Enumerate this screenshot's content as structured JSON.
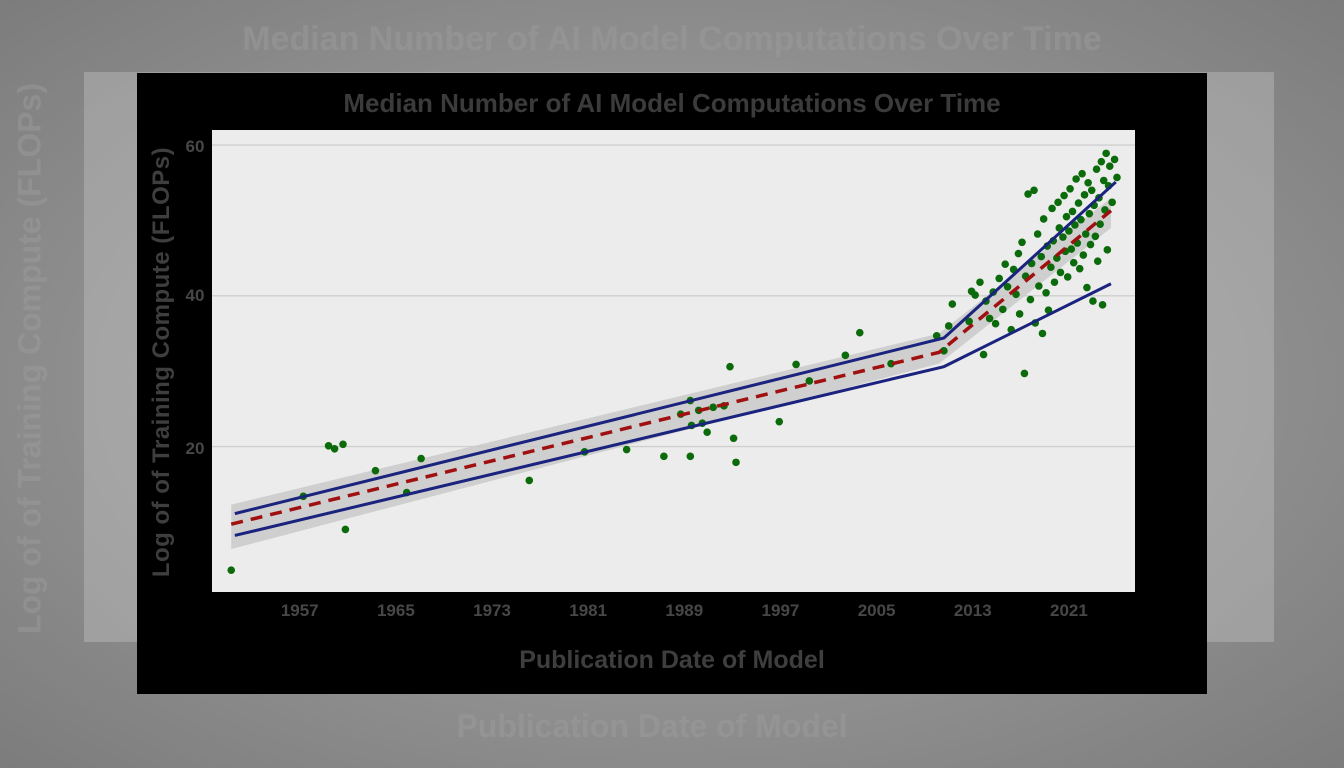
{
  "chart_data": {
    "type": "scatter",
    "title": "Median Number of AI Model Computations Over Time",
    "xlabel": "Publication Date of Model",
    "ylabel": "Log of of Training Compute (FLOPs)",
    "xlim": [
      1949.7,
      2026.5
    ],
    "ylim": [
      0.7,
      62
    ],
    "xticks": [
      "1957",
      "1965",
      "1973",
      "1981",
      "1989",
      "1997",
      "2005",
      "2013",
      "2021"
    ],
    "yticks": [
      "20",
      "40",
      "60"
    ],
    "grid": "horizontal",
    "colors": {
      "points": "#0b6b0b",
      "trend": "#a01010",
      "bounds": "#1a237e",
      "band": "#c8c8c8",
      "panel": "#ececec",
      "frame": "#000000"
    },
    "points": [
      [
        1951.3,
        3.6
      ],
      [
        1957.3,
        13.4
      ],
      [
        1959.4,
        20.1
      ],
      [
        1959.9,
        19.7
      ],
      [
        1960.6,
        20.3
      ],
      [
        1960.8,
        9.0
      ],
      [
        1963.3,
        16.8
      ],
      [
        1965.9,
        13.9
      ],
      [
        1967.1,
        18.4
      ],
      [
        1976.1,
        15.5
      ],
      [
        1980.7,
        19.3
      ],
      [
        1984.2,
        19.6
      ],
      [
        1987.3,
        18.7
      ],
      [
        1988.7,
        24.3
      ],
      [
        1989.5,
        26.1
      ],
      [
        1989.5,
        18.7
      ],
      [
        1989.6,
        22.8
      ],
      [
        1990.2,
        24.8
      ],
      [
        1990.5,
        23.1
      ],
      [
        1990.9,
        21.9
      ],
      [
        1991.4,
        25.2
      ],
      [
        1992.3,
        25.4
      ],
      [
        1992.8,
        30.6
      ],
      [
        1993.1,
        21.1
      ],
      [
        1993.3,
        17.9
      ],
      [
        1996.9,
        23.3
      ],
      [
        1998.3,
        30.9
      ],
      [
        1999.4,
        28.7
      ],
      [
        2002.4,
        32.1
      ],
      [
        2003.6,
        35.1
      ],
      [
        2006.2,
        31.0
      ],
      [
        2010.0,
        34.7
      ],
      [
        2010.6,
        32.7
      ],
      [
        2011.0,
        36.0
      ],
      [
        2011.3,
        38.9
      ],
      [
        2012.7,
        36.6
      ],
      [
        2012.9,
        40.6
      ],
      [
        2013.2,
        40.1
      ],
      [
        2013.6,
        41.8
      ],
      [
        2013.9,
        32.2
      ],
      [
        2014.1,
        39.3
      ],
      [
        2014.4,
        37.0
      ],
      [
        2014.7,
        40.5
      ],
      [
        2014.9,
        36.3
      ],
      [
        2015.2,
        42.3
      ],
      [
        2015.5,
        38.2
      ],
      [
        2015.7,
        44.2
      ],
      [
        2015.9,
        41.2
      ],
      [
        2016.2,
        35.5
      ],
      [
        2016.4,
        43.5
      ],
      [
        2016.6,
        40.2
      ],
      [
        2016.8,
        45.6
      ],
      [
        2016.9,
        37.6
      ],
      [
        2017.1,
        47.1
      ],
      [
        2017.3,
        29.7
      ],
      [
        2017.4,
        42.6
      ],
      [
        2017.6,
        53.5
      ],
      [
        2017.8,
        39.5
      ],
      [
        2017.9,
        44.3
      ],
      [
        2018.1,
        54.0
      ],
      [
        2018.2,
        36.4
      ],
      [
        2018.4,
        48.2
      ],
      [
        2018.5,
        41.3
      ],
      [
        2018.7,
        45.2
      ],
      [
        2018.8,
        35.0
      ],
      [
        2018.9,
        50.2
      ],
      [
        2019.1,
        40.4
      ],
      [
        2019.2,
        46.6
      ],
      [
        2019.3,
        38.1
      ],
      [
        2019.5,
        43.8
      ],
      [
        2019.6,
        51.6
      ],
      [
        2019.7,
        47.3
      ],
      [
        2019.8,
        41.8
      ],
      [
        2020.0,
        45.0
      ],
      [
        2020.1,
        52.4
      ],
      [
        2020.2,
        49.0
      ],
      [
        2020.3,
        43.1
      ],
      [
        2020.5,
        47.8
      ],
      [
        2020.6,
        53.3
      ],
      [
        2020.7,
        45.9
      ],
      [
        2020.8,
        50.5
      ],
      [
        2020.9,
        42.5
      ],
      [
        2021.0,
        48.6
      ],
      [
        2021.1,
        54.2
      ],
      [
        2021.2,
        46.2
      ],
      [
        2021.3,
        51.2
      ],
      [
        2021.4,
        44.4
      ],
      [
        2021.5,
        49.4
      ],
      [
        2021.6,
        55.5
      ],
      [
        2021.7,
        47.0
      ],
      [
        2021.8,
        52.3
      ],
      [
        2021.9,
        43.6
      ],
      [
        2022.0,
        50.1
      ],
      [
        2022.1,
        56.2
      ],
      [
        2022.2,
        45.4
      ],
      [
        2022.3,
        53.4
      ],
      [
        2022.4,
        48.2
      ],
      [
        2022.5,
        41.1
      ],
      [
        2022.6,
        55.0
      ],
      [
        2022.7,
        50.9
      ],
      [
        2022.8,
        46.8
      ],
      [
        2022.9,
        54.0
      ],
      [
        2023.0,
        39.3
      ],
      [
        2023.1,
        52.0
      ],
      [
        2023.2,
        47.9
      ],
      [
        2023.3,
        56.8
      ],
      [
        2023.4,
        44.6
      ],
      [
        2023.5,
        53.0
      ],
      [
        2023.6,
        49.5
      ],
      [
        2023.7,
        57.8
      ],
      [
        2023.8,
        38.8
      ],
      [
        2023.9,
        55.3
      ],
      [
        2024.0,
        51.4
      ],
      [
        2024.1,
        58.9
      ],
      [
        2024.2,
        46.1
      ],
      [
        2024.3,
        54.6
      ],
      [
        2024.4,
        57.2
      ],
      [
        2024.6,
        52.4
      ],
      [
        2024.8,
        58.1
      ],
      [
        2025.0,
        55.7
      ]
    ],
    "trend": [
      [
        1951.3,
        9.7
      ],
      [
        2010.2,
        32.5
      ],
      [
        2024.5,
        51.3
      ]
    ],
    "upper_bound": [
      [
        1951.6,
        11.1
      ],
      [
        2010.6,
        34.4
      ],
      [
        2024.9,
        55.1
      ]
    ],
    "lower_bound": [
      [
        1951.6,
        8.2
      ],
      [
        2010.6,
        30.6
      ],
      [
        2024.5,
        41.6
      ]
    ],
    "band_upper": [
      [
        1951.3,
        12.3
      ],
      [
        2010.2,
        35.0
      ],
      [
        2024.5,
        53.0
      ]
    ],
    "band_lower": [
      [
        1951.3,
        6.4
      ],
      [
        2010.2,
        31.0
      ],
      [
        2024.5,
        49.0
      ]
    ]
  }
}
